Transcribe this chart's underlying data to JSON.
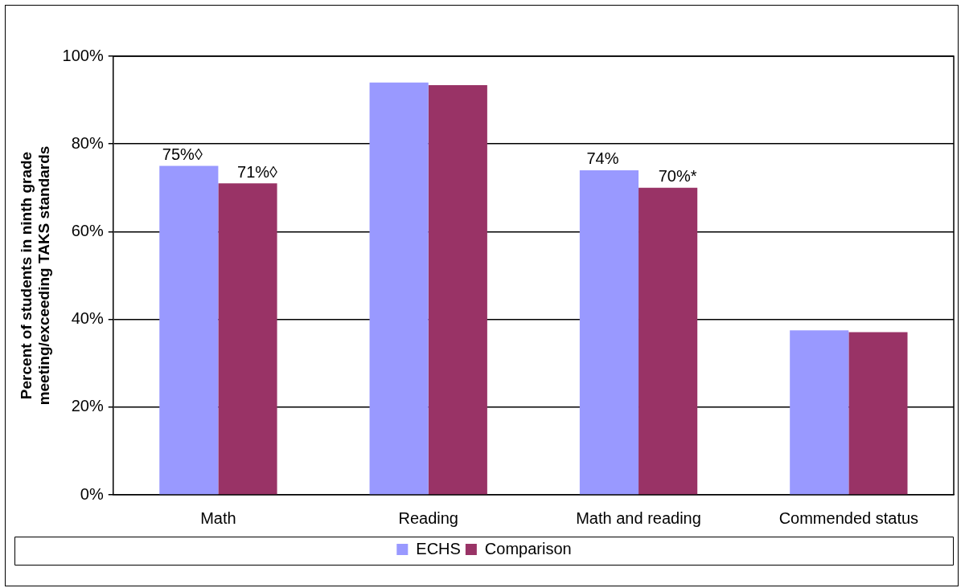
{
  "chart_data": {
    "type": "bar",
    "ylabel": "Percent of students in ninth grade meeting/exceeding TAKS standards",
    "categories": [
      "Math",
      "Reading",
      "Math and reading",
      "Commended status"
    ],
    "series": [
      {
        "name": "ECHS",
        "color": "#9999ff",
        "values": [
          75,
          94,
          74,
          37.5
        ],
        "value_labels": [
          "75%◊",
          null,
          "74%",
          null
        ]
      },
      {
        "name": "Comparison",
        "color": "#993366",
        "values": [
          71,
          93.4,
          70,
          37.1
        ],
        "value_labels": [
          "71%◊",
          null,
          "70%*",
          null
        ]
      }
    ],
    "ylim": [
      0,
      100
    ],
    "yticks": [
      {
        "value": 0,
        "label": "0%"
      },
      {
        "value": 20,
        "label": "20%"
      },
      {
        "value": 40,
        "label": "40%"
      },
      {
        "value": 60,
        "label": "60%"
      },
      {
        "value": 80,
        "label": "80%"
      },
      {
        "value": 100,
        "label": "100%"
      }
    ],
    "grid": "y",
    "legend": "bottom"
  }
}
